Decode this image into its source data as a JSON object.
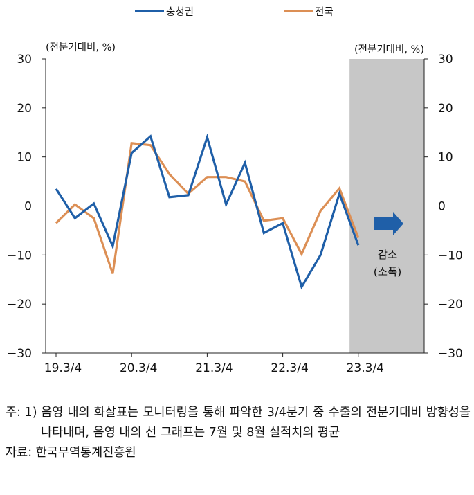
{
  "chart_data": {
    "type": "line",
    "legend": {
      "placement": "top-center"
    },
    "left_axis_unit": "(전분기대비, %)",
    "right_axis_unit": "(전분기대비, %)",
    "ylim": [
      -30,
      30
    ],
    "yticks": [
      30,
      20,
      10,
      0,
      -10,
      -20,
      -30
    ],
    "ytick_labels": [
      "30",
      "20",
      "10",
      "0",
      "−10",
      "−20",
      "−30"
    ],
    "x_tick_labels": [
      "19.3/4",
      "20.3/4",
      "21.3/4",
      "22.3/4",
      "23.3/4"
    ],
    "x_tick_index": [
      0,
      4,
      8,
      12,
      16
    ],
    "categories": [
      "19.3/4",
      "19.4/4",
      "20.1/4",
      "20.2/4",
      "20.3/4",
      "20.4/4",
      "21.1/4",
      "21.2/4",
      "21.3/4",
      "21.4/4",
      "22.1/4",
      "22.2/4",
      "22.3/4",
      "22.4/4",
      "23.1/4",
      "23.2/4",
      "23.3/4"
    ],
    "series": [
      {
        "name": "충청권",
        "color": "#1f5fa8",
        "values": [
          3.5,
          -2.5,
          0.5,
          -8.2,
          10.8,
          14.2,
          1.8,
          2.2,
          14.0,
          0.3,
          8.8,
          -5.5,
          -3.5,
          -16.5,
          -10.0,
          2.5,
          -8.0
        ]
      },
      {
        "name": "전국",
        "color": "#dc8f55",
        "values": [
          -3.5,
          0.3,
          -2.5,
          -13.8,
          12.8,
          12.4,
          6.5,
          2.5,
          5.9,
          5.9,
          5.0,
          -3.0,
          -2.5,
          -9.8,
          -1.0,
          3.6,
          -6.5
        ]
      }
    ],
    "shaded_region": {
      "from": "23.3/4",
      "to": "23.3/4",
      "color": "#c7c7c7"
    },
    "annotation": {
      "line1": "감소",
      "line2": "(소폭)",
      "arrow_color": "#1f5fa8",
      "icon": "right-arrow-icon"
    }
  },
  "notes": {
    "note1_tag": "주: 1)",
    "note1_text": "음영 내의 화살표는 모니터링을 통해 파악한 3/4분기 중 수출의 전분기대비 방향성을 나타내며, 음영 내의 선 그래프는 7월 및 8월 실적치의 평균",
    "source": "자료: 한국무역통계진흥원"
  }
}
